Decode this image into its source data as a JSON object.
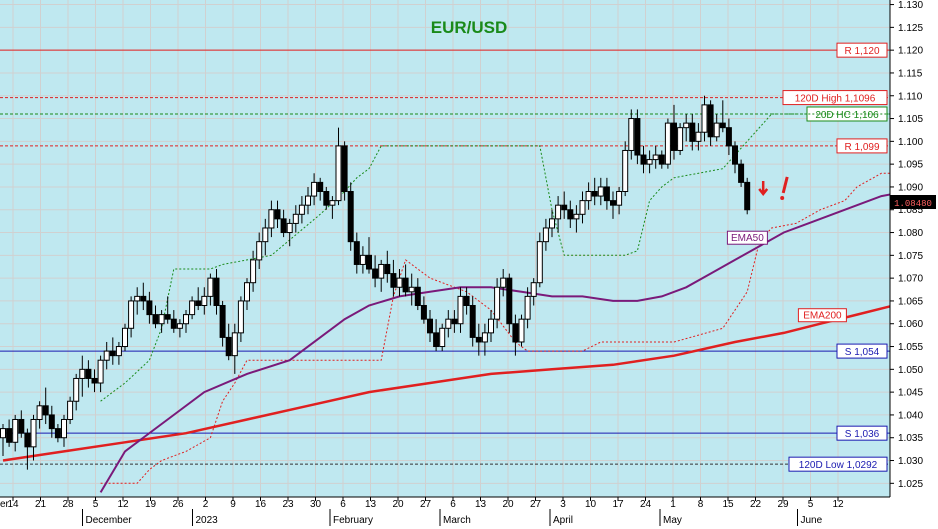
{
  "chart_data": {
    "type": "candlestick",
    "title": "EUR/USD",
    "ylim": [
      1.022,
      1.131
    ],
    "y_ticks": [
      "1.025",
      "1.030",
      "1.035",
      "1.040",
      "1.045",
      "1.050",
      "1.055",
      "1.060",
      "1.065",
      "1.070",
      "1.075",
      "1.080",
      "1.085",
      "1.090",
      "1.095",
      "1.100",
      "1.105",
      "1.110",
      "1.115",
      "1.120",
      "1.125",
      "1.130"
    ],
    "x_ticks": [
      "14",
      "21",
      "28",
      "5",
      "12",
      "19",
      "26",
      "2",
      "9",
      "16",
      "23",
      "30",
      "6",
      "13",
      "20",
      "27",
      "6",
      "13",
      "20",
      "27",
      "3",
      "10",
      "17",
      "24",
      "1",
      "8",
      "15",
      "22",
      "29",
      "5",
      "12"
    ],
    "first_tick_partial": "er",
    "months": [
      {
        "label": "December",
        "week": 3
      },
      {
        "label": "2023",
        "week": 7
      },
      {
        "label": "February",
        "week": 12
      },
      {
        "label": "March",
        "week": 16
      },
      {
        "label": "April",
        "week": 20
      },
      {
        "label": "May",
        "week": 24
      },
      {
        "label": "June",
        "week": 29
      }
    ],
    "last_price": "1.08480",
    "levels": [
      {
        "name": "R 1,120",
        "value": 1.12,
        "color": "#e02020",
        "style": "solid",
        "box": "#e02020",
        "fill": "#ffffff"
      },
      {
        "name": "120D High 1,1096",
        "value": 1.1096,
        "color": "#e02020",
        "style": "dashed",
        "box": "#e02020",
        "fill": "#ffffff"
      },
      {
        "name": "20D HC 1,106",
        "value": 1.106,
        "color": "#1a8a1a",
        "style": "dashed",
        "box": "#1a8a1a",
        "fill": "#ffffff"
      },
      {
        "name": "R 1,099",
        "value": 1.099,
        "color": "#e02020",
        "style": "dashed",
        "box": "#e02020",
        "fill": "#ffffff"
      },
      {
        "name": "S 1,054",
        "value": 1.054,
        "color": "#1a1ab0",
        "style": "solid",
        "box": "#1a1ab0",
        "fill": "#ffffff"
      },
      {
        "name": "S 1,036",
        "value": 1.036,
        "color": "#1a1ab0",
        "style": "solid",
        "box": "#1a1ab0",
        "fill": "#ffffff"
      },
      {
        "name": "120D Low 1,0292",
        "value": 1.0292,
        "color": "#333333",
        "style": "dashed",
        "box": "#1a1ab0",
        "fill": "#ffffff"
      }
    ],
    "ema_labels": {
      "ema50": "EMA50",
      "ema200": "EMA200"
    },
    "ema50": [
      [
        16,
        1.023
      ],
      [
        20,
        1.032
      ],
      [
        26,
        1.038
      ],
      [
        33,
        1.045
      ],
      [
        40,
        1.049
      ],
      [
        47,
        1.052
      ],
      [
        52,
        1.057
      ],
      [
        56,
        1.061
      ],
      [
        60,
        1.064
      ],
      [
        65,
        1.066
      ],
      [
        70,
        1.067
      ],
      [
        75,
        1.068
      ],
      [
        80,
        1.068
      ],
      [
        85,
        1.067
      ],
      [
        90,
        1.066
      ],
      [
        95,
        1.066
      ],
      [
        100,
        1.065
      ],
      [
        104,
        1.065
      ],
      [
        108,
        1.066
      ],
      [
        112,
        1.068
      ],
      [
        116,
        1.071
      ],
      [
        120,
        1.074
      ],
      [
        124,
        1.077
      ],
      [
        128,
        1.08
      ],
      [
        132,
        1.082
      ],
      [
        136,
        1.084
      ],
      [
        140,
        1.086
      ],
      [
        144,
        1.088
      ],
      [
        148,
        1.089
      ],
      [
        150,
        1.089
      ]
    ],
    "ema200": [
      [
        0,
        1.03
      ],
      [
        10,
        1.032
      ],
      [
        20,
        1.034
      ],
      [
        30,
        1.036
      ],
      [
        40,
        1.039
      ],
      [
        50,
        1.042
      ],
      [
        60,
        1.045
      ],
      [
        70,
        1.047
      ],
      [
        80,
        1.049
      ],
      [
        90,
        1.05
      ],
      [
        100,
        1.051
      ],
      [
        110,
        1.053
      ],
      [
        120,
        1.056
      ],
      [
        128,
        1.058
      ],
      [
        134,
        1.06
      ],
      [
        140,
        1.062
      ],
      [
        146,
        1.064
      ],
      [
        150,
        1.065
      ]
    ],
    "support_trail": [
      [
        16,
        1.025
      ],
      [
        22,
        1.025
      ],
      [
        24,
        1.028
      ],
      [
        26,
        1.03
      ],
      [
        30,
        1.032
      ],
      [
        34,
        1.035
      ],
      [
        36,
        1.043
      ],
      [
        38,
        1.047
      ],
      [
        40,
        1.052
      ],
      [
        62,
        1.052
      ],
      [
        64,
        1.066
      ],
      [
        66,
        1.074
      ],
      [
        70,
        1.07
      ],
      [
        76,
        1.067
      ],
      [
        80,
        1.063
      ],
      [
        84,
        1.056
      ],
      [
        86,
        1.054
      ],
      [
        95,
        1.054
      ],
      [
        98,
        1.056
      ],
      [
        103,
        1.056
      ],
      [
        110,
        1.056
      ],
      [
        118,
        1.059
      ],
      [
        122,
        1.067
      ],
      [
        124,
        1.078
      ],
      [
        126,
        1.081
      ],
      [
        130,
        1.082
      ],
      [
        134,
        1.085
      ],
      [
        138,
        1.087
      ],
      [
        140,
        1.09
      ],
      [
        144,
        1.093
      ],
      [
        146,
        1.093
      ]
    ],
    "resist_trail": [
      [
        16,
        1.043
      ],
      [
        20,
        1.047
      ],
      [
        24,
        1.052
      ],
      [
        26,
        1.059
      ],
      [
        28,
        1.072
      ],
      [
        34,
        1.072
      ],
      [
        36,
        1.073
      ],
      [
        40,
        1.074
      ],
      [
        44,
        1.075
      ],
      [
        52,
        1.084
      ],
      [
        56,
        1.089
      ],
      [
        58,
        1.092
      ],
      [
        60,
        1.094
      ],
      [
        62,
        1.099
      ],
      [
        88,
        1.099
      ],
      [
        90,
        1.085
      ],
      [
        92,
        1.075
      ],
      [
        102,
        1.075
      ],
      [
        104,
        1.076
      ],
      [
        106,
        1.087
      ],
      [
        108,
        1.09
      ],
      [
        110,
        1.092
      ],
      [
        118,
        1.094
      ],
      [
        122,
        1.1
      ],
      [
        126,
        1.106
      ],
      [
        146,
        1.106
      ]
    ],
    "candles": [
      [
        0,
        1.035,
        1.038,
        1.031,
        1.037
      ],
      [
        1,
        1.037,
        1.039,
        1.033,
        1.034
      ],
      [
        2,
        1.034,
        1.04,
        1.032,
        1.039
      ],
      [
        3,
        1.039,
        1.041,
        1.035,
        1.036
      ],
      [
        4,
        1.036,
        1.037,
        1.028,
        1.033
      ],
      [
        5,
        1.033,
        1.04,
        1.03,
        1.039
      ],
      [
        6,
        1.039,
        1.043,
        1.037,
        1.042
      ],
      [
        7,
        1.042,
        1.046,
        1.038,
        1.04
      ],
      [
        8,
        1.04,
        1.042,
        1.035,
        1.037
      ],
      [
        9,
        1.037,
        1.038,
        1.034,
        1.035
      ],
      [
        10,
        1.035,
        1.04,
        1.033,
        1.039
      ],
      [
        11,
        1.039,
        1.044,
        1.038,
        1.043
      ],
      [
        12,
        1.043,
        1.049,
        1.041,
        1.048
      ],
      [
        13,
        1.048,
        1.053,
        1.044,
        1.05
      ],
      [
        14,
        1.05,
        1.052,
        1.046,
        1.048
      ],
      [
        15,
        1.048,
        1.05,
        1.045,
        1.047
      ],
      [
        16,
        1.047,
        1.053,
        1.045,
        1.052
      ],
      [
        17,
        1.052,
        1.056,
        1.05,
        1.054
      ],
      [
        18,
        1.054,
        1.057,
        1.051,
        1.053
      ],
      [
        19,
        1.053,
        1.056,
        1.051,
        1.055
      ],
      [
        20,
        1.055,
        1.06,
        1.054,
        1.059
      ],
      [
        21,
        1.059,
        1.066,
        1.057,
        1.065
      ],
      [
        22,
        1.065,
        1.068,
        1.062,
        1.066
      ],
      [
        23,
        1.066,
        1.069,
        1.063,
        1.065
      ],
      [
        24,
        1.065,
        1.067,
        1.06,
        1.062
      ],
      [
        25,
        1.062,
        1.064,
        1.059,
        1.06
      ],
      [
        26,
        1.06,
        1.063,
        1.058,
        1.062
      ],
      [
        27,
        1.062,
        1.066,
        1.06,
        1.061
      ],
      [
        28,
        1.061,
        1.063,
        1.058,
        1.059
      ],
      [
        29,
        1.059,
        1.061,
        1.057,
        1.06
      ],
      [
        30,
        1.06,
        1.063,
        1.058,
        1.062
      ],
      [
        31,
        1.062,
        1.066,
        1.061,
        1.065
      ],
      [
        32,
        1.065,
        1.068,
        1.063,
        1.064
      ],
      [
        33,
        1.064,
        1.068,
        1.062,
        1.066
      ],
      [
        34,
        1.066,
        1.071,
        1.064,
        1.07
      ],
      [
        35,
        1.07,
        1.072,
        1.062,
        1.064
      ],
      [
        36,
        1.064,
        1.065,
        1.055,
        1.057
      ],
      [
        37,
        1.057,
        1.06,
        1.052,
        1.053
      ],
      [
        38,
        1.053,
        1.06,
        1.049,
        1.058
      ],
      [
        39,
        1.058,
        1.066,
        1.056,
        1.065
      ],
      [
        40,
        1.065,
        1.07,
        1.063,
        1.069
      ],
      [
        41,
        1.069,
        1.076,
        1.067,
        1.074
      ],
      [
        42,
        1.074,
        1.08,
        1.072,
        1.078
      ],
      [
        43,
        1.078,
        1.083,
        1.075,
        1.081
      ],
      [
        44,
        1.081,
        1.087,
        1.079,
        1.085
      ],
      [
        45,
        1.085,
        1.087,
        1.081,
        1.083
      ],
      [
        46,
        1.083,
        1.085,
        1.079,
        1.08
      ],
      [
        47,
        1.08,
        1.083,
        1.077,
        1.082
      ],
      [
        48,
        1.082,
        1.086,
        1.08,
        1.084
      ],
      [
        49,
        1.084,
        1.088,
        1.082,
        1.086
      ],
      [
        50,
        1.086,
        1.09,
        1.084,
        1.088
      ],
      [
        51,
        1.088,
        1.093,
        1.086,
        1.091
      ],
      [
        52,
        1.091,
        1.092,
        1.087,
        1.089
      ],
      [
        53,
        1.089,
        1.09,
        1.085,
        1.086
      ],
      [
        54,
        1.086,
        1.088,
        1.083,
        1.087
      ],
      [
        55,
        1.087,
        1.103,
        1.086,
        1.099
      ],
      [
        56,
        1.099,
        1.1,
        1.087,
        1.089
      ],
      [
        57,
        1.089,
        1.091,
        1.076,
        1.078
      ],
      [
        58,
        1.078,
        1.08,
        1.071,
        1.073
      ],
      [
        59,
        1.073,
        1.077,
        1.071,
        1.075
      ],
      [
        60,
        1.075,
        1.079,
        1.071,
        1.072
      ],
      [
        61,
        1.072,
        1.075,
        1.068,
        1.07
      ],
      [
        62,
        1.07,
        1.074,
        1.067,
        1.073
      ],
      [
        63,
        1.073,
        1.076,
        1.069,
        1.071
      ],
      [
        64,
        1.071,
        1.074,
        1.066,
        1.068
      ],
      [
        65,
        1.068,
        1.072,
        1.066,
        1.07
      ],
      [
        66,
        1.07,
        1.073,
        1.066,
        1.067
      ],
      [
        67,
        1.067,
        1.071,
        1.064,
        1.068
      ],
      [
        68,
        1.068,
        1.07,
        1.063,
        1.064
      ],
      [
        69,
        1.064,
        1.066,
        1.06,
        1.061
      ],
      [
        70,
        1.061,
        1.063,
        1.056,
        1.058
      ],
      [
        71,
        1.058,
        1.061,
        1.054,
        1.055
      ],
      [
        72,
        1.055,
        1.06,
        1.054,
        1.059
      ],
      [
        73,
        1.059,
        1.063,
        1.057,
        1.061
      ],
      [
        74,
        1.061,
        1.063,
        1.058,
        1.06
      ],
      [
        75,
        1.06,
        1.068,
        1.058,
        1.066
      ],
      [
        76,
        1.066,
        1.068,
        1.062,
        1.064
      ],
      [
        77,
        1.064,
        1.066,
        1.055,
        1.057
      ],
      [
        78,
        1.057,
        1.06,
        1.053,
        1.056
      ],
      [
        79,
        1.056,
        1.06,
        1.053,
        1.058
      ],
      [
        80,
        1.058,
        1.063,
        1.056,
        1.061
      ],
      [
        81,
        1.061,
        1.07,
        1.059,
        1.068
      ],
      [
        82,
        1.068,
        1.072,
        1.066,
        1.07
      ],
      [
        83,
        1.07,
        1.071,
        1.058,
        1.06
      ],
      [
        84,
        1.06,
        1.062,
        1.053,
        1.056
      ],
      [
        85,
        1.056,
        1.062,
        1.055,
        1.061
      ],
      [
        86,
        1.061,
        1.068,
        1.059,
        1.066
      ],
      [
        87,
        1.066,
        1.07,
        1.064,
        1.069
      ],
      [
        88,
        1.069,
        1.08,
        1.068,
        1.078
      ],
      [
        89,
        1.078,
        1.083,
        1.076,
        1.081
      ],
      [
        90,
        1.081,
        1.085,
        1.079,
        1.083
      ],
      [
        91,
        1.083,
        1.088,
        1.08,
        1.086
      ],
      [
        92,
        1.086,
        1.089,
        1.083,
        1.085
      ],
      [
        93,
        1.085,
        1.087,
        1.081,
        1.083
      ],
      [
        94,
        1.083,
        1.086,
        1.08,
        1.084
      ],
      [
        95,
        1.084,
        1.089,
        1.082,
        1.087
      ],
      [
        96,
        1.087,
        1.091,
        1.085,
        1.089
      ],
      [
        97,
        1.089,
        1.092,
        1.086,
        1.088
      ],
      [
        98,
        1.088,
        1.092,
        1.086,
        1.09
      ],
      [
        99,
        1.09,
        1.092,
        1.085,
        1.087
      ],
      [
        100,
        1.087,
        1.089,
        1.083,
        1.086
      ],
      [
        101,
        1.086,
        1.09,
        1.084,
        1.089
      ],
      [
        102,
        1.089,
        1.1,
        1.088,
        1.098
      ],
      [
        103,
        1.098,
        1.107,
        1.096,
        1.105
      ],
      [
        104,
        1.105,
        1.107,
        1.095,
        1.097
      ],
      [
        105,
        1.097,
        1.099,
        1.093,
        1.095
      ],
      [
        106,
        1.095,
        1.098,
        1.093,
        1.096
      ],
      [
        107,
        1.096,
        1.099,
        1.094,
        1.097
      ],
      [
        108,
        1.097,
        1.098,
        1.094,
        1.095
      ],
      [
        109,
        1.095,
        1.105,
        1.094,
        1.104
      ],
      [
        110,
        1.104,
        1.108,
        1.096,
        1.098
      ],
      [
        111,
        1.098,
        1.104,
        1.097,
        1.103
      ],
      [
        112,
        1.103,
        1.106,
        1.1,
        1.104
      ],
      [
        113,
        1.104,
        1.106,
        1.098,
        1.1
      ],
      [
        114,
        1.1,
        1.104,
        1.098,
        1.102
      ],
      [
        115,
        1.102,
        1.11,
        1.1,
        1.108
      ],
      [
        116,
        1.108,
        1.109,
        1.099,
        1.101
      ],
      [
        117,
        1.101,
        1.106,
        1.1,
        1.104
      ],
      [
        118,
        1.104,
        1.109,
        1.102,
        1.103
      ],
      [
        119,
        1.103,
        1.105,
        1.097,
        1.099
      ],
      [
        120,
        1.099,
        1.1,
        1.093,
        1.095
      ],
      [
        121,
        1.095,
        1.096,
        1.09,
        1.091
      ],
      [
        122,
        1.091,
        1.092,
        1.084,
        1.085
      ]
    ],
    "xlabel": "",
    "ylabel": "",
    "grid": true
  }
}
